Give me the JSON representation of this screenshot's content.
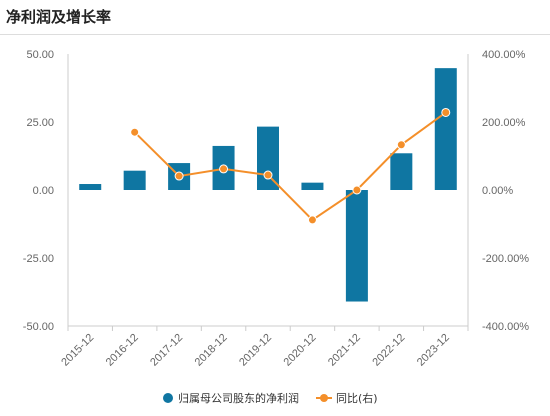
{
  "page_title": "净利润及增长率",
  "colors": {
    "bar": "#0f76a2",
    "line": "#f48f2a",
    "axis": "#cccccc",
    "tick_text": "#666666"
  },
  "chart_data": {
    "type": "bar",
    "categories": [
      "2015-12",
      "2016-12",
      "2017-12",
      "2018-12",
      "2019-12",
      "2020-12",
      "2021-12",
      "2022-12",
      "2023-12"
    ],
    "series": [
      {
        "name": "归属母公司股东的净利润",
        "type": "bar",
        "axis": "left",
        "values": [
          2.2,
          7.1,
          9.9,
          16.2,
          23.3,
          2.7,
          -41.0,
          13.5,
          44.8
        ]
      },
      {
        "name": "同比(右)",
        "type": "line",
        "axis": "right",
        "values": [
          null,
          170,
          41,
          62,
          44,
          -88,
          0,
          133,
          228
        ]
      }
    ],
    "ylim_left": [
      -50,
      50
    ],
    "ylim_right": [
      -400,
      400
    ],
    "yticks_left": [
      "50.00",
      "25.00",
      "0.00",
      "-25.00",
      "-50.00"
    ],
    "yticks_right": [
      "400.00%",
      "200.00%",
      "0.00%",
      "-200.00%",
      "-400.00%"
    ],
    "grid": false,
    "legend_position": "bottom"
  }
}
